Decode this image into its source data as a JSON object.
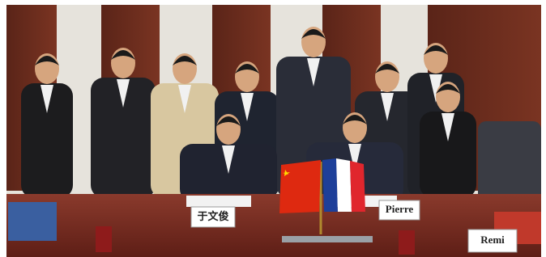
{
  "name_cards": [
    {
      "label": "于文俊"
    },
    {
      "label": "Pierre"
    },
    {
      "label": "Remi"
    }
  ]
}
